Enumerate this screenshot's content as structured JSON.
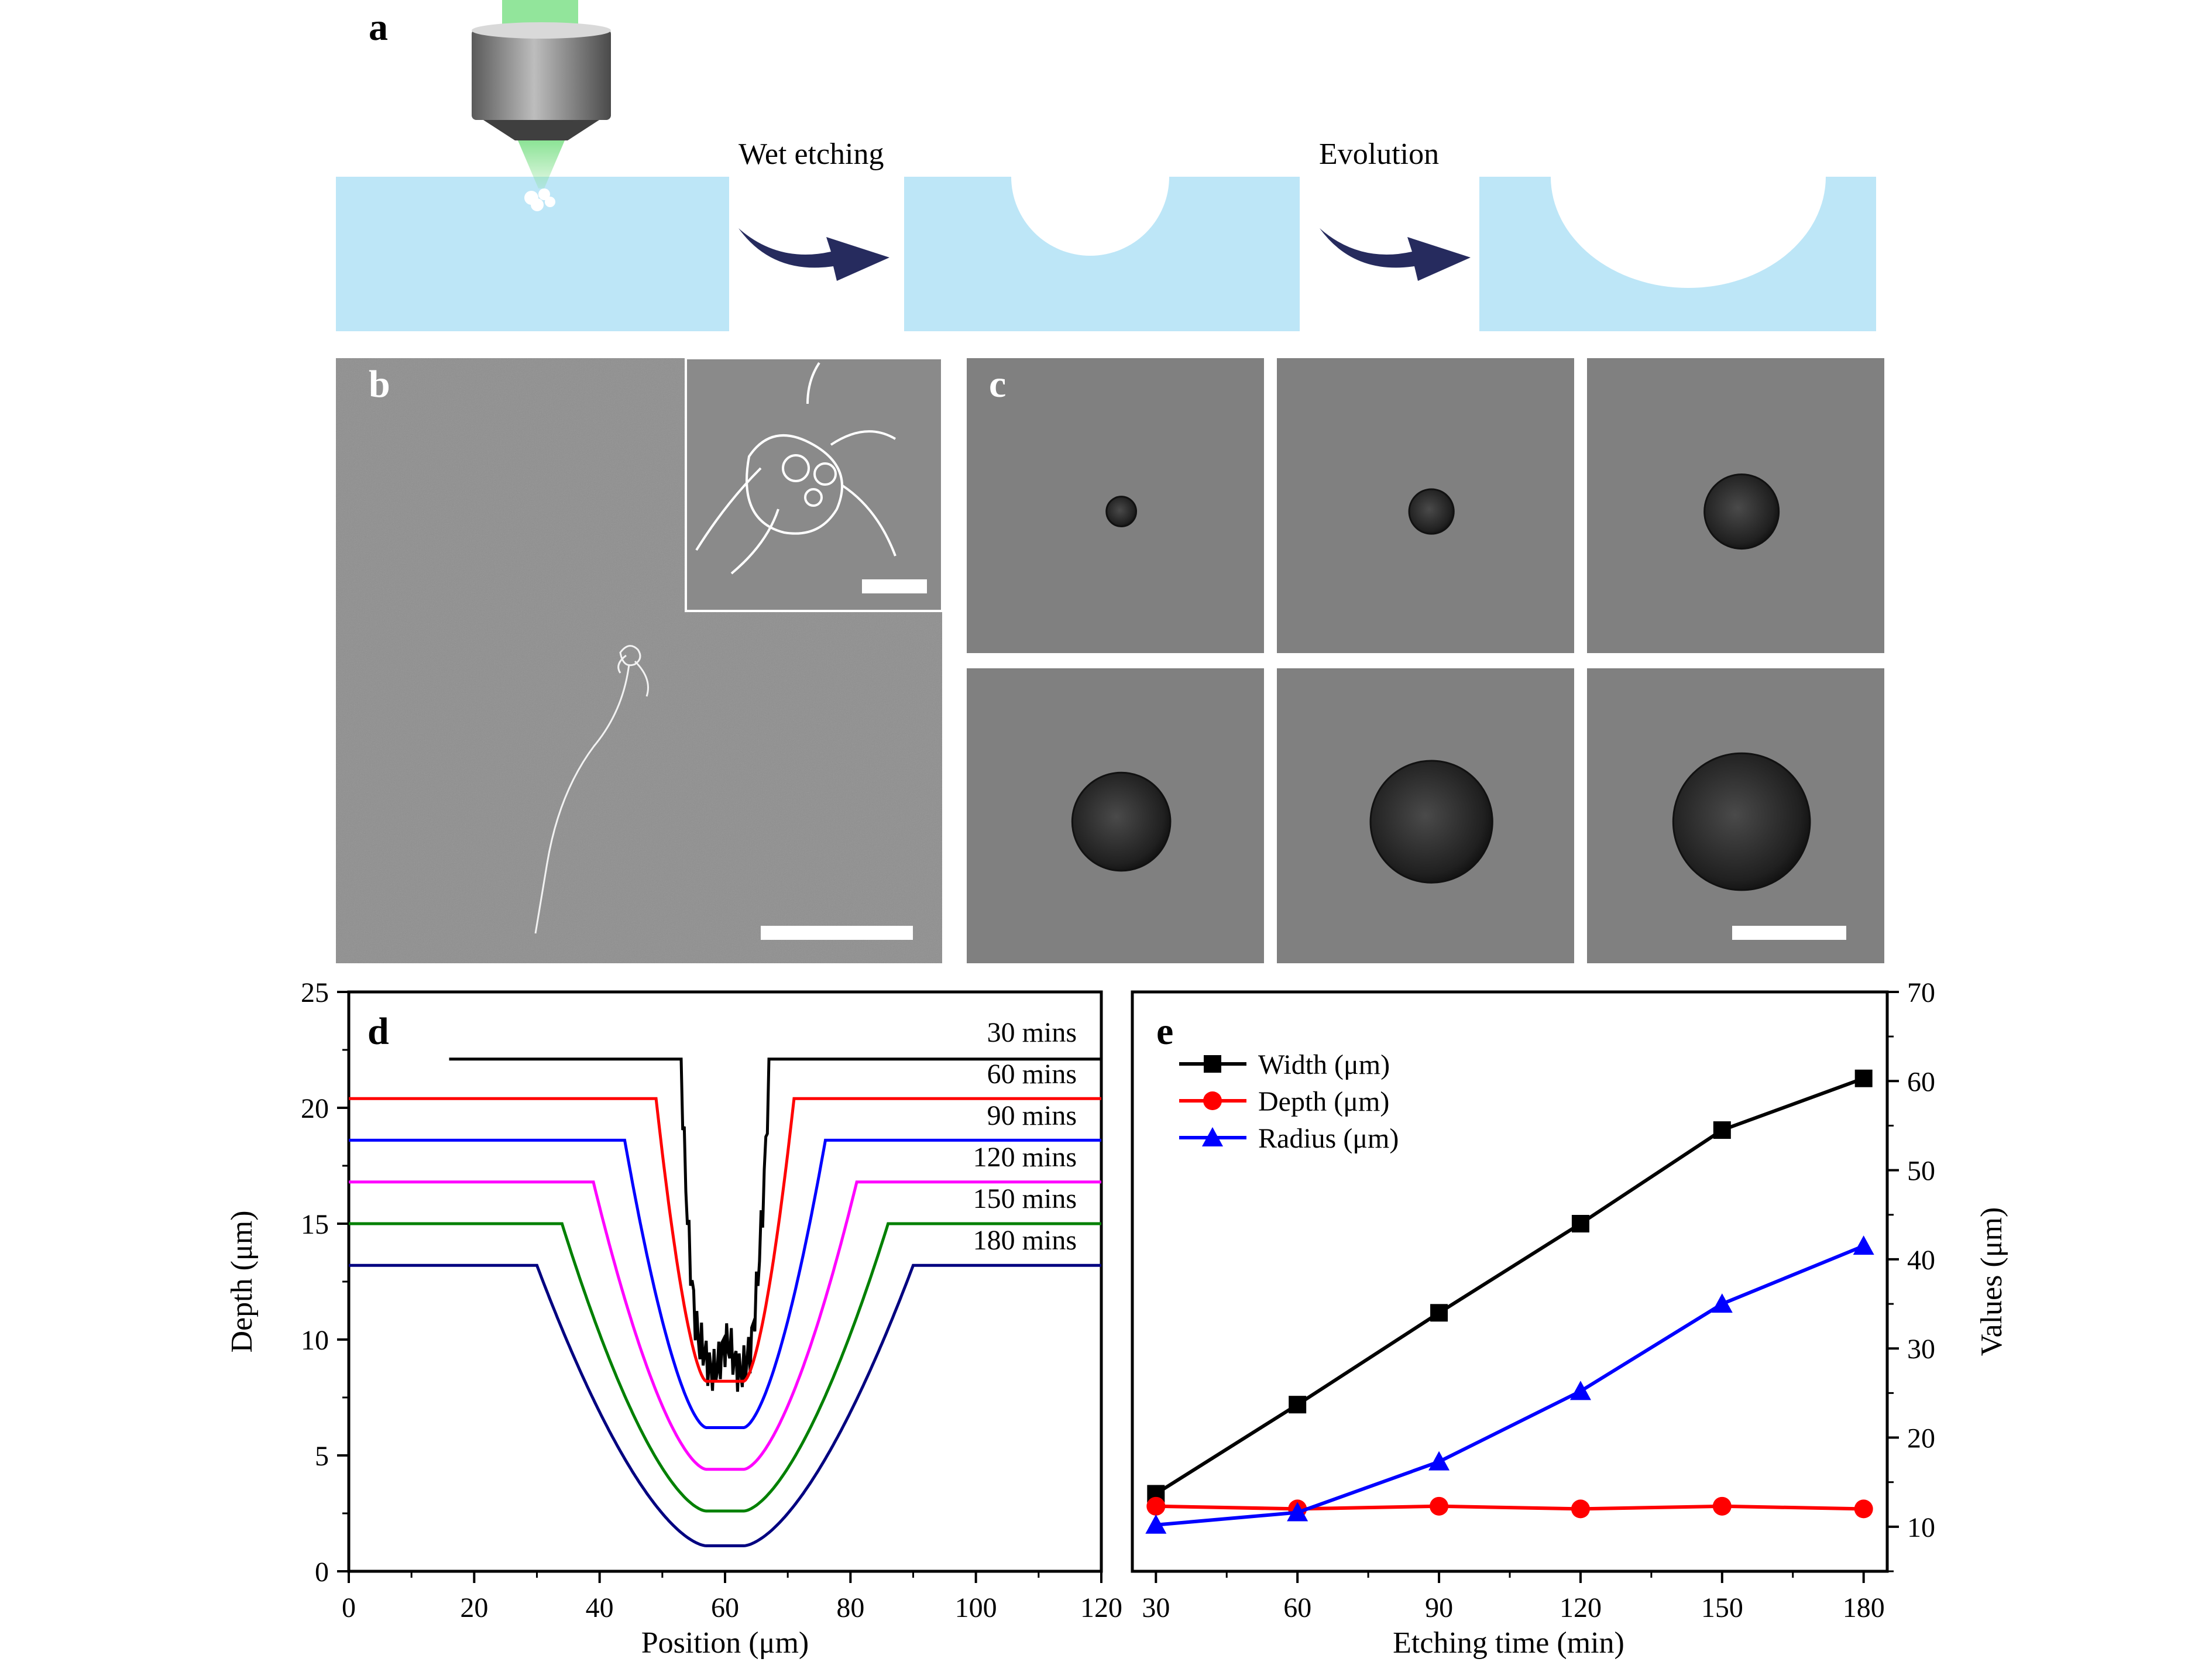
{
  "panel_labels": {
    "a": "a",
    "b": "b",
    "c": "c",
    "d": "d",
    "e": "e"
  },
  "schematic": {
    "step1_label": "Wet etching",
    "step2_label": "Evolution",
    "colors": {
      "substrate": "#bde6f7",
      "arrow": "#262b5e",
      "laser": "#7fe08a",
      "objective": "#8c8c8c"
    }
  },
  "micrographs": {
    "sem_background": "#8e8e8e",
    "optical_background": "#808080",
    "scale_bar_color": "#ffffff",
    "crater_relative_sizes": [
      0.1,
      0.15,
      0.25,
      0.33,
      0.41,
      0.46
    ]
  },
  "chart_data": [
    {
      "type": "line",
      "panel": "d",
      "xlabel": "Position (μm)",
      "ylabel": "Depth (μm)",
      "xlim": [
        0,
        120
      ],
      "ylim": [
        0,
        25
      ],
      "xticks": [
        0,
        20,
        40,
        60,
        80,
        100,
        120
      ],
      "yticks": [
        0,
        5,
        10,
        15,
        20,
        25
      ],
      "grid": false,
      "series": [
        {
          "name": "30 mins",
          "color": "#000000",
          "baseline": 22.1,
          "x_start": 16,
          "bottom": 9.2,
          "halfwidth_top": 7,
          "halfwidth_bottom": 4,
          "noisy": true
        },
        {
          "name": "60 mins",
          "color": "#ff0000",
          "baseline": 20.4,
          "x_start": 0,
          "bottom": 8.2,
          "halfwidth_top": 11,
          "halfwidth_bottom": 3,
          "noisy": false
        },
        {
          "name": "90 mins",
          "color": "#0000ff",
          "baseline": 18.6,
          "x_start": 0,
          "bottom": 6.2,
          "halfwidth_top": 16,
          "halfwidth_bottom": 3,
          "noisy": false
        },
        {
          "name": "120 mins",
          "color": "#ff00ff",
          "baseline": 16.8,
          "x_start": 0,
          "bottom": 4.4,
          "halfwidth_top": 21,
          "halfwidth_bottom": 3,
          "noisy": false
        },
        {
          "name": "150 mins",
          "color": "#008000",
          "baseline": 15.0,
          "x_start": 0,
          "bottom": 2.6,
          "halfwidth_top": 26,
          "halfwidth_bottom": 3,
          "noisy": false
        },
        {
          "name": "180 mins",
          "color": "#000080",
          "baseline": 13.2,
          "x_start": 0,
          "bottom": 1.1,
          "halfwidth_top": 30,
          "halfwidth_bottom": 3,
          "noisy": false
        }
      ]
    },
    {
      "type": "line",
      "panel": "e",
      "xlabel": "Etching time (min)",
      "ylabel": "Values (μm)",
      "x": [
        30,
        60,
        90,
        120,
        150,
        180
      ],
      "xlim": [
        25,
        185
      ],
      "ylim": [
        5,
        70
      ],
      "xticks": [
        30,
        60,
        90,
        120,
        150,
        180
      ],
      "yticks": [
        10,
        20,
        30,
        40,
        50,
        60,
        70
      ],
      "legend_position": "top-left",
      "grid": false,
      "series": [
        {
          "name": "Width (μm)",
          "color": "#000000",
          "marker": "square",
          "values": [
            13.7,
            23.7,
            34.0,
            44.0,
            54.5,
            60.3
          ]
        },
        {
          "name": "Depth (μm)",
          "color": "#ff0000",
          "marker": "circle",
          "values": [
            12.3,
            12.0,
            12.3,
            12.0,
            12.3,
            12.0
          ]
        },
        {
          "name": "Radius (μm)",
          "color": "#0000ff",
          "marker": "triangle",
          "values": [
            10.2,
            11.6,
            17.3,
            25.2,
            35.0,
            41.5
          ]
        }
      ]
    }
  ]
}
